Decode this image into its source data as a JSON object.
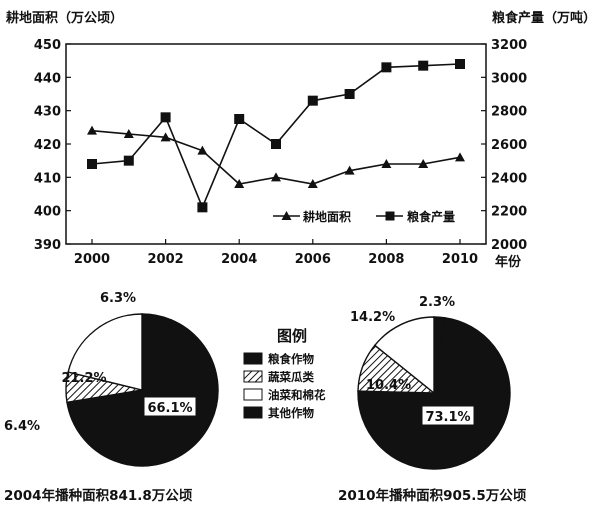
{
  "chart_data": [
    {
      "type": "line",
      "left_axis_label": "耕地面积（万公顷）",
      "right_axis_label": "粮食产量（万吨）",
      "x_unit": "年份",
      "x": [
        2000,
        2001,
        2002,
        2003,
        2004,
        2005,
        2006,
        2007,
        2008,
        2009,
        2010
      ],
      "x_ticks": [
        "2000",
        "2002",
        "2004",
        "2006",
        "2008",
        "2010"
      ],
      "y_left_ticks": [
        "390",
        "400",
        "410",
        "420",
        "430",
        "440",
        "450"
      ],
      "y_right_ticks": [
        "2000",
        "2200",
        "2400",
        "2600",
        "2800",
        "3000",
        "3200"
      ],
      "ylim_left": [
        390,
        450
      ],
      "ylim_right": [
        2000,
        3200
      ],
      "grid": false,
      "legend_position": "bottom-right",
      "series": [
        {
          "name": "耕地面积",
          "axis": "left",
          "marker": "triangle",
          "values": [
            424,
            423,
            422,
            418,
            408,
            410,
            408,
            412,
            414,
            414,
            416
          ]
        },
        {
          "name": "粮食产量",
          "axis": "right",
          "marker": "square",
          "values": [
            2480,
            2500,
            2760,
            2220,
            2750,
            2600,
            2860,
            2900,
            3060,
            3070,
            3080
          ]
        }
      ]
    },
    {
      "type": "pie",
      "caption": "2004年播种面积841.8万公顷",
      "slices": [
        {
          "name": "粮食作物",
          "value": 66.1,
          "label": "66.1%"
        },
        {
          "name": "蔬菜瓜类",
          "value": 6.4,
          "label": "6.4%"
        },
        {
          "name": "油菜和棉花",
          "value": 21.2,
          "label": "21.2%"
        },
        {
          "name": "其他作物",
          "value": 6.3,
          "label": "6.3%"
        }
      ]
    },
    {
      "type": "pie",
      "caption": "2010年播种面积905.5万公顷",
      "slices": [
        {
          "name": "粮食作物",
          "value": 73.1,
          "label": "73.1%"
        },
        {
          "name": "蔬菜瓜类",
          "value": 10.4,
          "label": "10.4%"
        },
        {
          "name": "油菜和棉花",
          "value": 14.2,
          "label": "14.2%"
        },
        {
          "name": "其他作物",
          "value": 2.3,
          "label": "2.3%"
        }
      ]
    }
  ],
  "pie_legend": {
    "title": "图例",
    "items": [
      {
        "name": "粮食作物",
        "fill": "#111111"
      },
      {
        "name": "蔬菜瓜类",
        "fill": "hatch"
      },
      {
        "name": "油菜和棉花",
        "fill": "#ffffff"
      },
      {
        "name": "其他作物",
        "fill": "#111111"
      }
    ]
  }
}
